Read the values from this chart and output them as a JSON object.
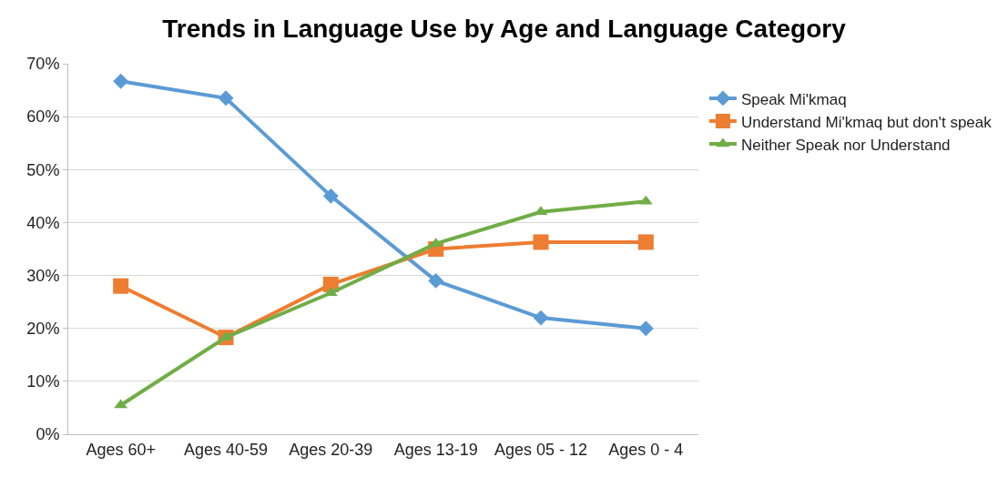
{
  "chart_data": {
    "type": "line",
    "title": "Trends in Language Use by Age and Language Category",
    "categories": [
      "Ages 60+",
      "Ages 40-59",
      "Ages 20-39",
      "Ages 13-19",
      "Ages 05 - 12",
      "Ages 0 - 4"
    ],
    "series": [
      {
        "name": "Speak Mi'kmaq",
        "color": "#5b9bd5",
        "marker": "diamond",
        "values": [
          66.7,
          63.5,
          45,
          29,
          22,
          20
        ]
      },
      {
        "name": "Understand Mi'kmaq but don't speak",
        "color": "#ed7d31",
        "marker": "square",
        "values": [
          28,
          18.3,
          28.3,
          35,
          36.3,
          36.3
        ]
      },
      {
        "name": "Neither Speak nor Understand",
        "color": "#70ad47",
        "marker": "triangle",
        "values": [
          5.5,
          18.3,
          26.7,
          36,
          42,
          44
        ]
      }
    ],
    "ylim": [
      0,
      70
    ],
    "yticks": [
      {
        "value": 0,
        "label": "0%"
      },
      {
        "value": 10,
        "label": "10%"
      },
      {
        "value": 20,
        "label": "20%"
      },
      {
        "value": 30,
        "label": "30%"
      },
      {
        "value": 40,
        "label": "40%"
      },
      {
        "value": 50,
        "label": "50%"
      },
      {
        "value": 60,
        "label": "60%"
      },
      {
        "value": 70,
        "label": "70%"
      }
    ],
    "grid": "y",
    "legend": "right",
    "line_style": "solid"
  }
}
